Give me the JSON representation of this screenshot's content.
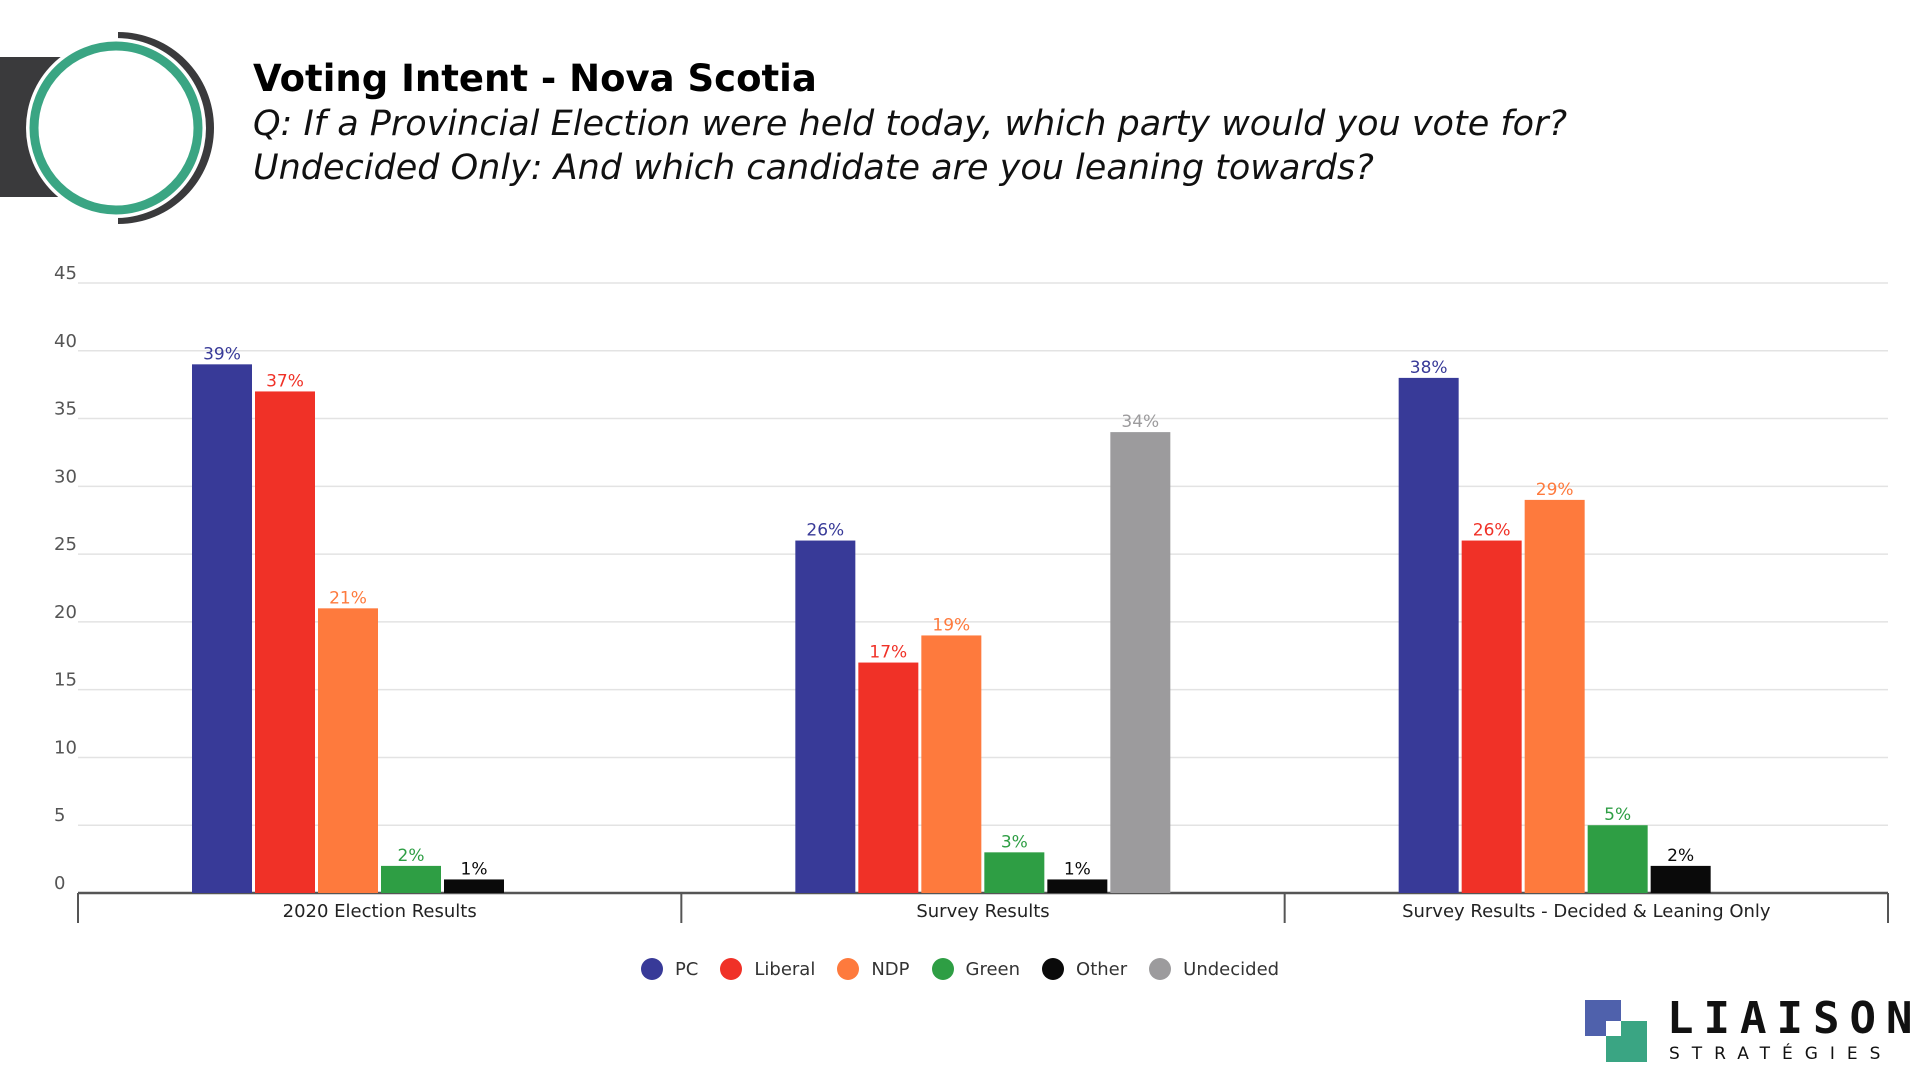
{
  "header": {
    "title": "Voting Intent - Nova Scotia",
    "subtitle_line1": "Q: If a Provincial Election were held today, which party would you vote for?",
    "subtitle_line2": "Undecided Only: And which candidate are you leaning towards?"
  },
  "colors": {
    "PC": "#383a98",
    "Liberal": "#f03127",
    "NDP": "#fe7a3d",
    "Green": "#2e9e44",
    "Other": "#0a0a0a",
    "Undecided": "#9c9b9d",
    "grid": "#e3e3e3",
    "axis": "#555555",
    "tick_label": "#555555",
    "logo_teal": "#3aa583",
    "logo_dark": "#3a3a3c",
    "brand_blue": "#4f61ac"
  },
  "chart_data": {
    "type": "bar",
    "title": "Voting Intent - Nova Scotia",
    "xlabel": "",
    "ylabel": "",
    "ylim": [
      0,
      45
    ],
    "yticks": [
      0,
      5,
      10,
      15,
      20,
      25,
      30,
      35,
      40,
      45
    ],
    "grid": true,
    "legend_position": "bottom",
    "categories": [
      "2020 Election Results",
      "Survey Results",
      "Survey Results - Decided & Leaning Only"
    ],
    "series": [
      {
        "name": "PC",
        "values": [
          39,
          26,
          38
        ],
        "labels": [
          "39%",
          "26%",
          "38%"
        ]
      },
      {
        "name": "Liberal",
        "values": [
          37,
          17,
          26
        ],
        "labels": [
          "37%",
          "17%",
          "26%"
        ]
      },
      {
        "name": "NDP",
        "values": [
          21,
          19,
          29
        ],
        "labels": [
          "21%",
          "19%",
          "29%"
        ]
      },
      {
        "name": "Green",
        "values": [
          2,
          3,
          5
        ],
        "labels": [
          "2%",
          "3%",
          "5%"
        ]
      },
      {
        "name": "Other",
        "values": [
          1,
          1,
          2
        ],
        "labels": [
          "1%",
          "1%",
          "2%"
        ]
      },
      {
        "name": "Undecided",
        "values": [
          null,
          34,
          null
        ],
        "labels": [
          "",
          "34%",
          ""
        ]
      }
    ]
  },
  "legend": [
    "PC",
    "Liberal",
    "NDP",
    "Green",
    "Other",
    "Undecided"
  ],
  "brand": {
    "name": "LIAISON",
    "sub": "STRATÉGIES"
  }
}
